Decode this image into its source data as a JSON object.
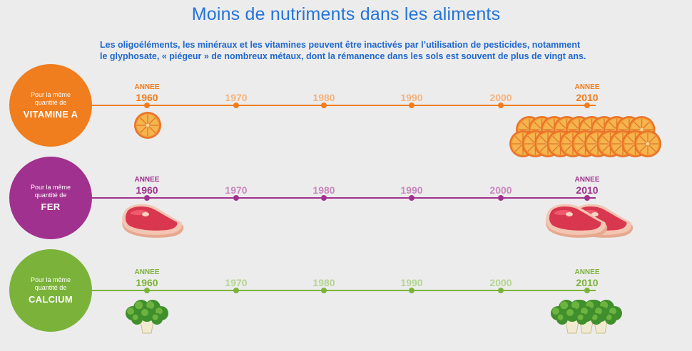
{
  "title": "Moins de nutriments dans les aliments",
  "intro": {
    "line1": "Les oligoéléments, les minéraux et les vitamines peuvent être inactivés par l’utilisation de pesticides, notamment",
    "line2": "le glyphosate, « piégeur » de nombreux métaux, dont la rémanence dans les sols est souvent de plus de vingt ans."
  },
  "year_marker_label": "ANNEE",
  "years": [
    "1960",
    "1970",
    "1980",
    "1990",
    "2000",
    "2010"
  ],
  "rows": [
    {
      "circle_line1": "Pour la même",
      "circle_line2": "quantité de",
      "nutrient": "VITAMINE A",
      "color": "#f07d1e",
      "faded_color": "#f4b37e",
      "food_icon": "orange-slice-icon",
      "count_1960": 1,
      "count_2010": 21
    },
    {
      "circle_line1": "Pour la même",
      "circle_line2": "quantité de",
      "nutrient": "FER",
      "color": "#a1318e",
      "faded_color": "#c989bd",
      "food_icon": "steak-icon",
      "count_1960": 1,
      "count_2010": 2
    },
    {
      "circle_line1": "Pour la même",
      "circle_line2": "quantité de",
      "nutrient": "CALCIUM",
      "color": "#7bb33a",
      "faded_color": "#b5d592",
      "food_icon": "broccoli-icon",
      "count_1960": 1,
      "count_2010": 3
    }
  ]
}
